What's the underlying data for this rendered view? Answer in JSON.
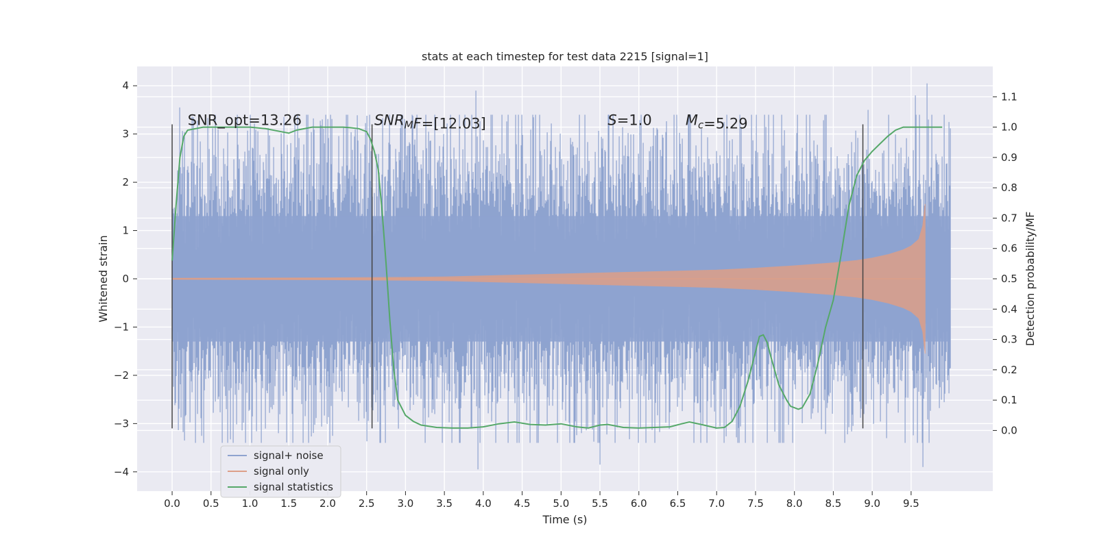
{
  "chart_data": {
    "type": "line",
    "title": "stats at each timestep for test data 2215 [signal=1]",
    "xlabel": "Time (s)",
    "ylabel_left": "Whitened strain",
    "ylabel_right": "Detection probability/MF",
    "xlim": [
      -0.45,
      10.55
    ],
    "ylim_left": [
      -4.4,
      4.4
    ],
    "ylim_right": [
      -0.2,
      1.2
    ],
    "grid": true,
    "xticks": [
      0.0,
      0.5,
      1.0,
      1.5,
      2.0,
      2.5,
      3.0,
      3.5,
      4.0,
      4.5,
      5.0,
      5.5,
      6.0,
      6.5,
      7.0,
      7.5,
      8.0,
      8.5,
      9.0,
      9.5
    ],
    "xtick_labels": [
      "0.0",
      "0.5",
      "1.0",
      "1.5",
      "2.0",
      "2.5",
      "3.0",
      "3.5",
      "4.0",
      "4.5",
      "5.0",
      "5.5",
      "6.0",
      "6.5",
      "7.0",
      "7.5",
      "8.0",
      "8.5",
      "9.0",
      "9.5"
    ],
    "yticks_left": [
      -4,
      -3,
      -2,
      -1,
      0,
      1,
      2,
      3,
      4
    ],
    "ytick_labels_left": [
      "−4",
      "−3",
      "−2",
      "−1",
      "0",
      "1",
      "2",
      "3",
      "4"
    ],
    "yticks_right": [
      0.0,
      0.1,
      0.2,
      0.3,
      0.4,
      0.5,
      0.6,
      0.7,
      0.8,
      0.9,
      1.0,
      1.1
    ],
    "ytick_labels_right": [
      "0.0",
      "0.1",
      "0.2",
      "0.3",
      "0.4",
      "0.5",
      "0.6",
      "0.7",
      "0.8",
      "0.9",
      "1.0",
      "1.1"
    ],
    "legend_position": "lower-left",
    "legend": [
      "signal+ noise",
      "signal only",
      "signal statistics"
    ],
    "annotations": [
      {
        "text": "SNR_opt=13.26",
        "x": 0.2,
        "y": 3.3,
        "italic_prefix": ""
      },
      {
        "text": "=[12.03]",
        "x": 2.6,
        "y": 3.3,
        "italic_prefix": "SNR",
        "subscript": "M",
        "italic_suffix": "F"
      },
      {
        "text": "=1.0",
        "x": 5.6,
        "y": 3.3,
        "italic_prefix": "S"
      },
      {
        "text": "=5.29",
        "x": 6.6,
        "y": 3.3,
        "italic_prefix": "M",
        "subscript": "c"
      }
    ],
    "vlines": [
      {
        "x": 0.0,
        "ymin": -3.1,
        "ymax": 3.2
      },
      {
        "x": 2.57,
        "ymin": -3.1,
        "ymax": 3.2
      },
      {
        "x": 8.88,
        "ymin": -3.1,
        "ymax": 3.2
      }
    ],
    "series": [
      {
        "name": "signal+ noise",
        "color": "#8ea3cf",
        "x_range": [
          0.0,
          10.0
        ],
        "envelope_sigma": 1.0,
        "notable_extremes": [
          {
            "x": 3.9,
            "y": 3.9
          },
          {
            "x": 9.7,
            "y": 4.05
          },
          {
            "x": 9.55,
            "y": 3.8
          },
          {
            "x": 3.93,
            "y": -3.95
          },
          {
            "x": 5.5,
            "y": -3.85
          },
          {
            "x": 9.65,
            "y": -3.9
          },
          {
            "x": 0.1,
            "y": 3.55
          },
          {
            "x": 8.95,
            "y": 3.5
          }
        ]
      },
      {
        "name": "signal only",
        "color": "#dd9f88",
        "x": [
          0.0,
          1.0,
          2.0,
          3.0,
          3.5,
          4.0,
          4.5,
          5.0,
          5.5,
          6.0,
          6.5,
          7.0,
          7.5,
          8.0,
          8.5,
          8.8,
          9.0,
          9.2,
          9.4,
          9.5,
          9.6,
          9.65,
          9.68
        ],
        "amplitude": [
          0.01,
          0.015,
          0.02,
          0.03,
          0.04,
          0.06,
          0.08,
          0.1,
          0.12,
          0.14,
          0.16,
          0.18,
          0.22,
          0.27,
          0.33,
          0.38,
          0.43,
          0.5,
          0.6,
          0.68,
          0.82,
          1.1,
          1.55
        ]
      },
      {
        "name": "signal statistics",
        "color": "#55a868",
        "x": [
          0.0,
          0.05,
          0.1,
          0.15,
          0.2,
          0.4,
          0.8,
          1.0,
          1.2,
          1.4,
          1.5,
          1.6,
          1.8,
          2.0,
          2.2,
          2.3,
          2.4,
          2.5,
          2.55,
          2.6,
          2.65,
          2.7,
          2.75,
          2.8,
          2.85,
          2.9,
          3.0,
          3.1,
          3.2,
          3.4,
          3.6,
          3.8,
          4.0,
          4.2,
          4.4,
          4.6,
          4.8,
          5.0,
          5.2,
          5.35,
          5.5,
          5.6,
          5.8,
          6.0,
          6.2,
          6.4,
          6.55,
          6.65,
          6.8,
          7.0,
          7.1,
          7.2,
          7.3,
          7.4,
          7.5,
          7.55,
          7.6,
          7.65,
          7.7,
          7.8,
          7.9,
          7.95,
          8.0,
          8.05,
          8.1,
          8.2,
          8.3,
          8.4,
          8.5,
          8.6,
          8.7,
          8.8,
          8.9,
          9.0,
          9.1,
          9.2,
          9.3,
          9.4,
          9.6,
          9.8,
          9.9
        ],
        "values": [
          0.56,
          0.74,
          0.9,
          0.97,
          0.99,
          1.0,
          1.0,
          1.0,
          0.995,
          0.985,
          0.98,
          0.99,
          1.0,
          1.0,
          1.0,
          0.998,
          0.995,
          0.985,
          0.96,
          0.92,
          0.86,
          0.72,
          0.55,
          0.36,
          0.2,
          0.1,
          0.05,
          0.03,
          0.018,
          0.01,
          0.008,
          0.008,
          0.012,
          0.022,
          0.028,
          0.02,
          0.018,
          0.022,
          0.012,
          0.008,
          0.018,
          0.02,
          0.01,
          0.008,
          0.01,
          0.012,
          0.022,
          0.028,
          0.02,
          0.008,
          0.01,
          0.03,
          0.08,
          0.16,
          0.26,
          0.31,
          0.315,
          0.29,
          0.24,
          0.15,
          0.1,
          0.08,
          0.075,
          0.07,
          0.075,
          0.12,
          0.22,
          0.34,
          0.43,
          0.58,
          0.74,
          0.84,
          0.89,
          0.92,
          0.945,
          0.97,
          0.99,
          1.0,
          1.0,
          1.0,
          1.0
        ]
      }
    ]
  }
}
